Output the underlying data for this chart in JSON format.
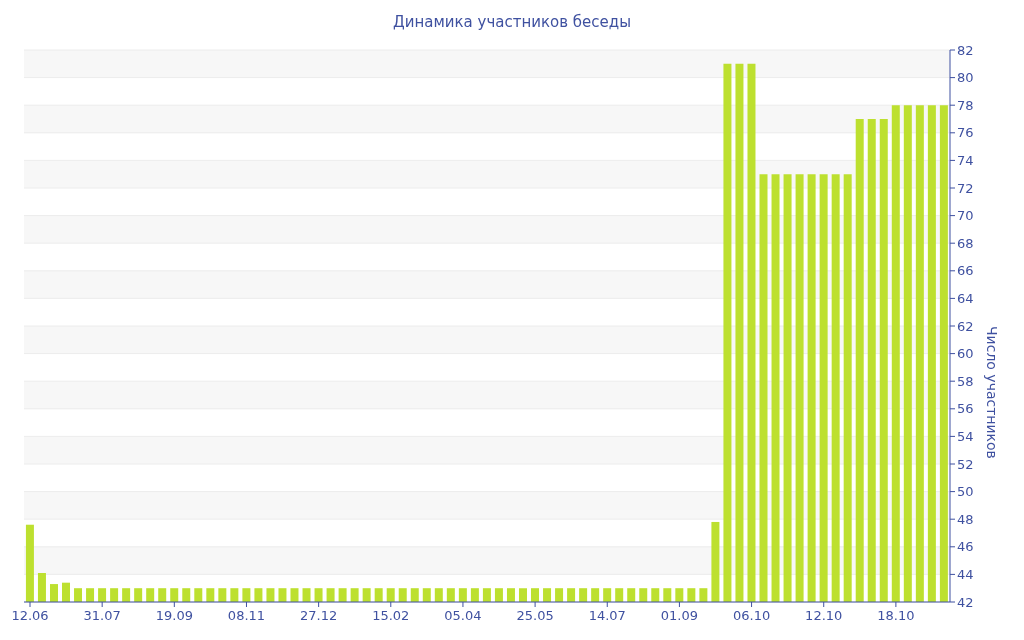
{
  "chart_data": {
    "type": "bar",
    "title": "Динамика участников беседы",
    "ylabel": "Число участников",
    "categories": [
      "12.06",
      null,
      null,
      null,
      null,
      null,
      "31.07",
      null,
      null,
      null,
      null,
      null,
      "19.09",
      null,
      null,
      null,
      null,
      null,
      "08.11",
      null,
      null,
      null,
      null,
      null,
      "27.12",
      null,
      null,
      null,
      null,
      null,
      "15.02",
      null,
      null,
      null,
      null,
      null,
      "05.04",
      null,
      null,
      null,
      null,
      null,
      "25.05",
      null,
      null,
      null,
      null,
      null,
      "14.07",
      null,
      null,
      null,
      null,
      null,
      "01.09",
      null,
      null,
      null,
      null,
      null,
      "06.10",
      null,
      null,
      null,
      null,
      null,
      "12.10",
      null,
      null,
      null,
      null,
      null,
      "18.10",
      null,
      null,
      null,
      null
    ],
    "values": [
      47.6,
      44.1,
      43.3,
      43.4,
      43,
      43,
      43,
      43,
      43,
      43,
      43,
      43,
      43,
      43,
      43,
      43,
      43,
      43,
      43,
      43,
      43,
      43,
      43,
      43,
      43,
      43,
      43,
      43,
      43,
      43,
      43,
      43,
      43,
      43,
      43,
      43,
      43,
      43,
      43,
      43,
      43,
      43,
      43,
      43,
      43,
      43,
      43,
      43,
      43,
      43,
      43,
      43,
      43,
      43,
      43,
      43,
      43,
      47.8,
      81,
      81,
      81,
      73,
      73,
      73,
      73,
      73,
      73,
      73,
      73,
      77,
      77,
      77,
      78,
      78,
      78,
      78,
      78
    ],
    "color": "#bde02f",
    "ylim": [
      42,
      82
    ],
    "yticks": [
      42,
      44,
      46,
      48,
      50,
      52,
      54,
      56,
      58,
      60,
      62,
      64,
      66,
      68,
      70,
      72,
      74,
      76,
      78,
      80,
      82
    ],
    "grid": "y"
  }
}
